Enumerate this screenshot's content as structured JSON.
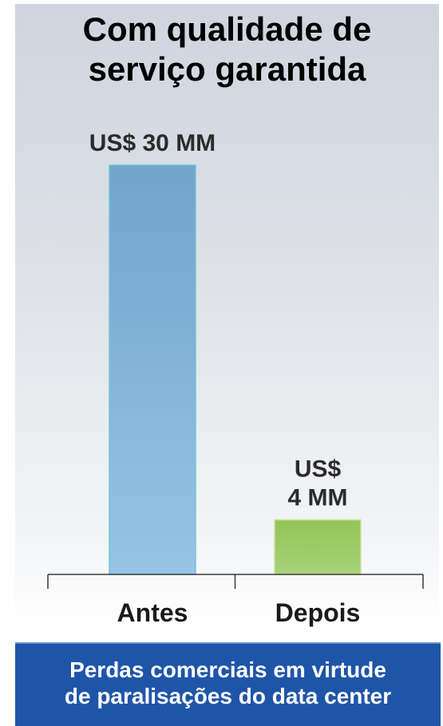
{
  "title": {
    "line1": "Com qualidade de",
    "line2": "serviço garantida"
  },
  "caption": {
    "line1": "Perdas comerciais em virtude",
    "line2": "de paralisações do data center"
  },
  "colors": {
    "antes_bar": "#7fb0d8",
    "depois_bar": "#9bc85e",
    "caption_bg": "#1f55a8"
  },
  "chart_data": {
    "type": "bar",
    "title": "Com qualidade de serviço garantida",
    "categories": [
      "Antes",
      "Depois"
    ],
    "values": [
      30,
      4
    ],
    "unit": "US$ MM",
    "data_labels": [
      [
        "US$ 30 MM"
      ],
      [
        "US$",
        "4 MM"
      ]
    ],
    "xlabel": "Perdas comerciais em virtude de paralisações do data center",
    "ylabel": "",
    "ylim": [
      0,
      30
    ],
    "grid": false,
    "legend": "none"
  }
}
